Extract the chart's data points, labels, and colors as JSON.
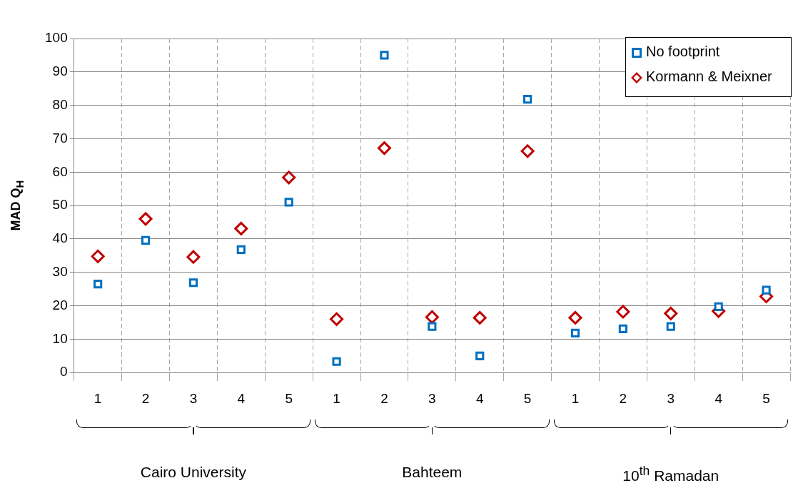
{
  "chart_data": {
    "type": "scatter",
    "ylabel": "MAD Q$_{H}$",
    "categories": [
      "1",
      "2",
      "3",
      "4",
      "5",
      "1",
      "2",
      "3",
      "4",
      "5",
      "1",
      "2",
      "3",
      "4",
      "5"
    ],
    "series": [
      {
        "name": "No footprint",
        "color": "#0070c0",
        "marker": "square",
        "values": [
          26.5,
          39.6,
          26.9,
          36.8,
          51.0,
          3.3,
          95.0,
          13.8,
          5.0,
          81.8,
          11.8,
          13.1,
          13.8,
          19.7,
          24.7
        ]
      },
      {
        "name": "Kormann & Meixner",
        "color": "#c00000",
        "marker": "diamond",
        "values": [
          34.8,
          46.0,
          34.6,
          43.1,
          58.4,
          16.0,
          67.2,
          16.6,
          16.4,
          66.3,
          16.4,
          18.2,
          17.7,
          18.4,
          22.8
        ]
      }
    ],
    "annotations": [
      "Cairo University",
      "Bahteem",
      "10$^{th}$ Ramadan"
    ],
    "ylim": [
      0,
      100
    ],
    "yticks": [
      0,
      10,
      20,
      30,
      40,
      50,
      60,
      70,
      80,
      90,
      100
    ],
    "grid": true,
    "legend": "top right"
  }
}
